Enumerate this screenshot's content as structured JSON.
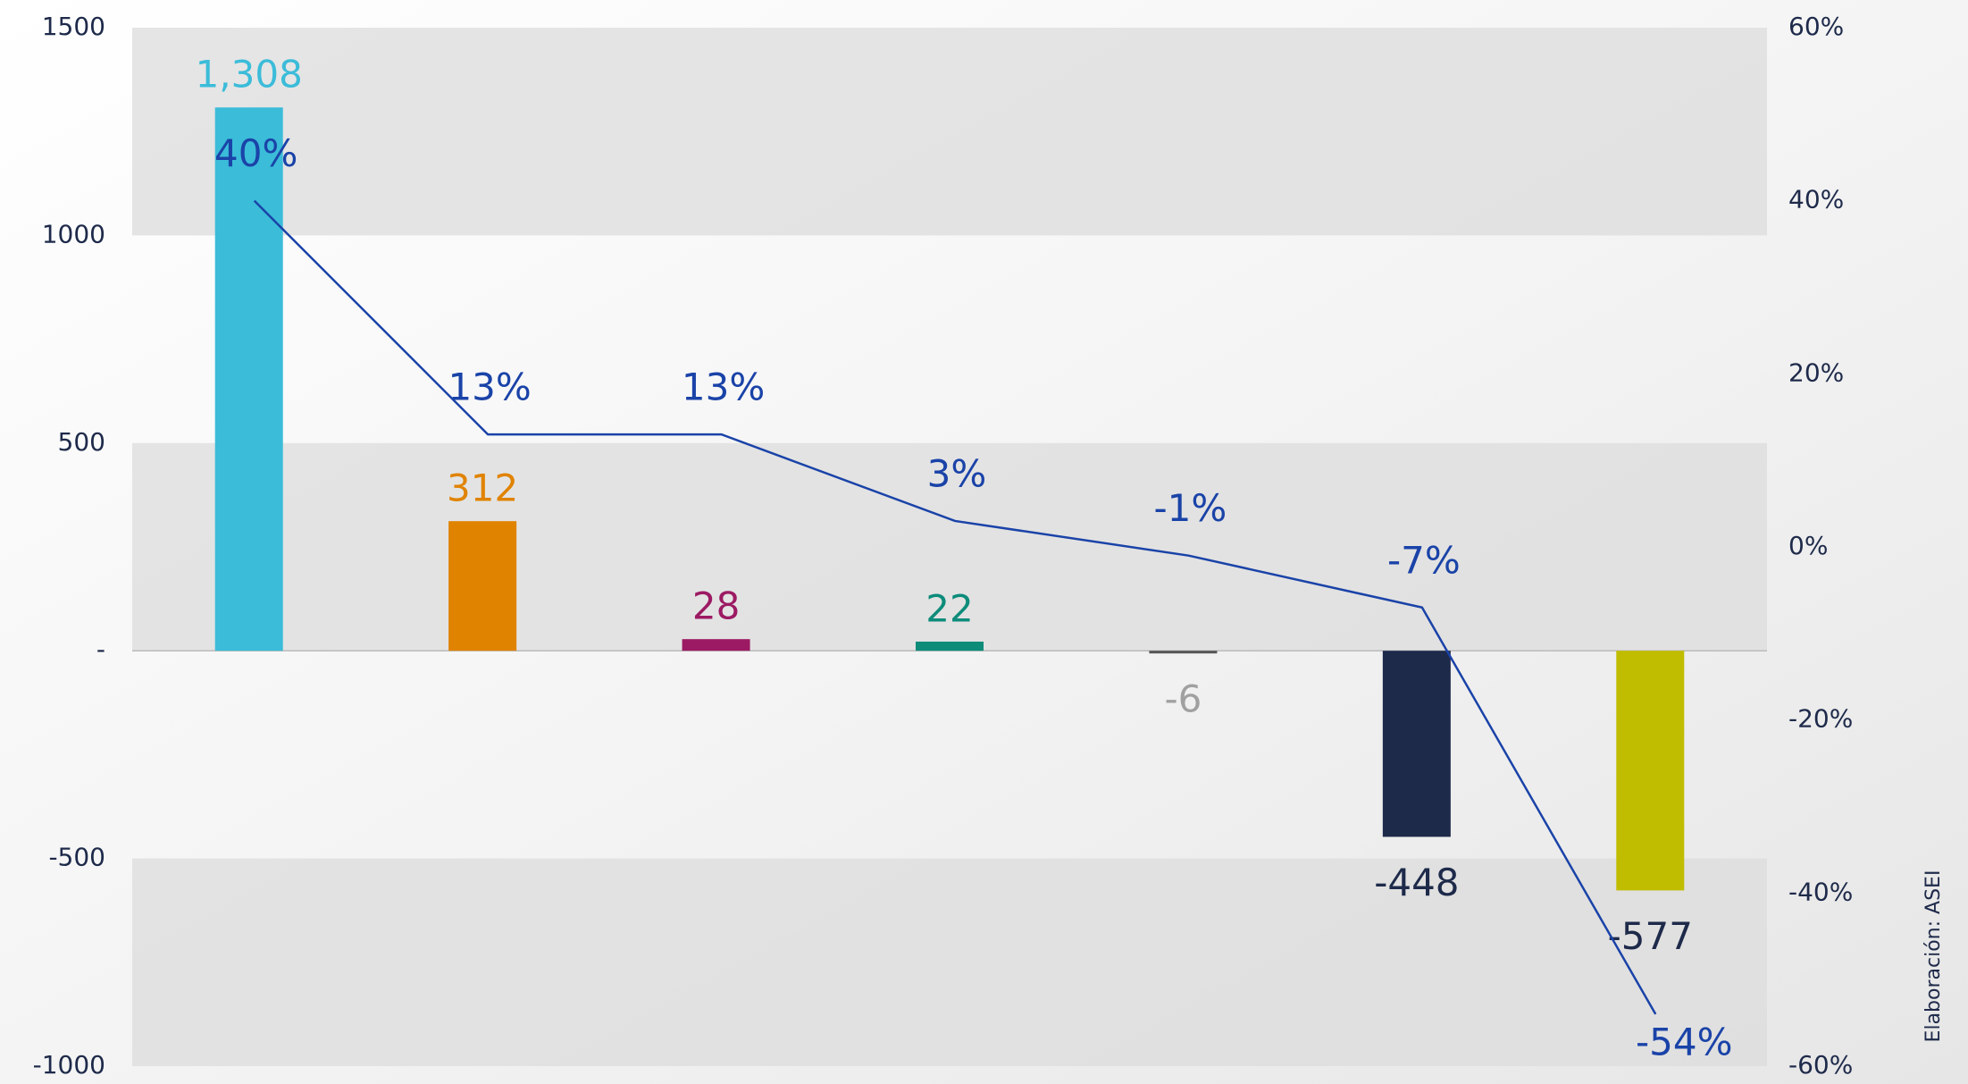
{
  "chart_data": {
    "type": "bar",
    "series": [
      {
        "name": "Variación",
        "colors": [
          "#3bbcd9",
          "#e08300",
          "#9c1a63",
          "#0d8c7a",
          "#555555",
          "#1e2a4a",
          "#c0bd00"
        ],
        "label_colors": [
          "#3bbcd9",
          "#e08300",
          "#9c1a63",
          "#0d8c7a",
          "#a0a0a0",
          "#1e2a4a",
          "#1e2a4a"
        ],
        "values": [
          1308,
          312,
          28,
          22,
          -6,
          -448,
          -577
        ],
        "value_labels": [
          "1,308",
          "312",
          "28",
          "22",
          "-6",
          "-448",
          "-577"
        ]
      },
      {
        "name": "Variación %",
        "type": "line",
        "axis": "y2",
        "color": "#1a43a8",
        "values": [
          40,
          13,
          13,
          3,
          -1,
          -7,
          -54
        ],
        "value_labels": [
          "40%",
          "13%",
          "13%",
          "3%",
          "-1%",
          "-7%",
          "-54%"
        ]
      }
    ],
    "ylim": [
      -1000,
      1500
    ],
    "yticks": [
      -1000,
      -500,
      {
        "value": 0,
        "label": "-"
      },
      500,
      1000,
      1500
    ],
    "y2lim": [
      -60,
      60
    ],
    "y2ticks": [
      {
        "value": -60,
        "label": "-60%"
      },
      {
        "value": -40,
        "label": "-40%"
      },
      {
        "value": -20,
        "label": "-20%"
      },
      {
        "value": 0,
        "label": "0%"
      },
      {
        "value": 20,
        "label": "20%"
      },
      {
        "value": 40,
        "label": "40%"
      },
      {
        "value": 60,
        "label": "60%"
      }
    ],
    "bands": true,
    "source": "Elaboración: ASEI"
  }
}
